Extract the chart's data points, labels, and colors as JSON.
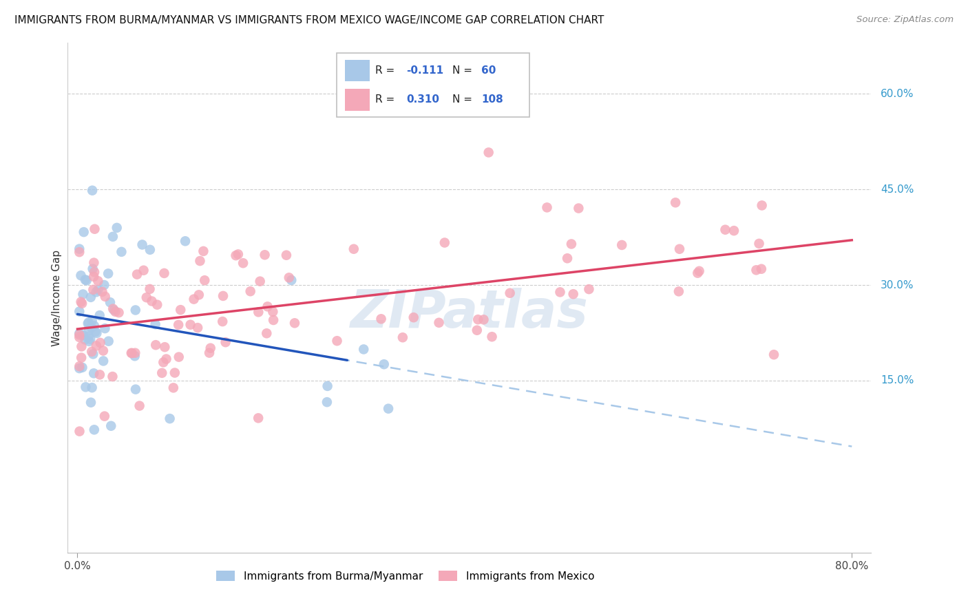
{
  "title": "IMMIGRANTS FROM BURMA/MYANMAR VS IMMIGRANTS FROM MEXICO WAGE/INCOME GAP CORRELATION CHART",
  "source": "Source: ZipAtlas.com",
  "ylabel": "Wage/Income Gap",
  "right_yticks": [
    "60.0%",
    "45.0%",
    "30.0%",
    "15.0%"
  ],
  "right_ytick_vals": [
    0.6,
    0.45,
    0.3,
    0.15
  ],
  "xlim": [
    -0.01,
    0.82
  ],
  "ylim": [
    -0.12,
    0.68
  ],
  "legend_label_blue": "Immigrants from Burma/Myanmar",
  "legend_label_pink": "Immigrants from Mexico",
  "blue_color": "#a8c8e8",
  "pink_color": "#f4a8b8",
  "blue_line_color": "#2255bb",
  "pink_line_color": "#dd4466",
  "blue_dashed_color": "#a8c8e8",
  "watermark": "ZIPatlas",
  "blue_R": "-0.111",
  "blue_N": "60",
  "pink_R": "0.310",
  "pink_N": "108",
  "r_n_color": "#3366cc",
  "label_color": "#222222",
  "right_tick_color": "#3399cc",
  "grid_color": "#cccccc",
  "source_color": "#888888"
}
